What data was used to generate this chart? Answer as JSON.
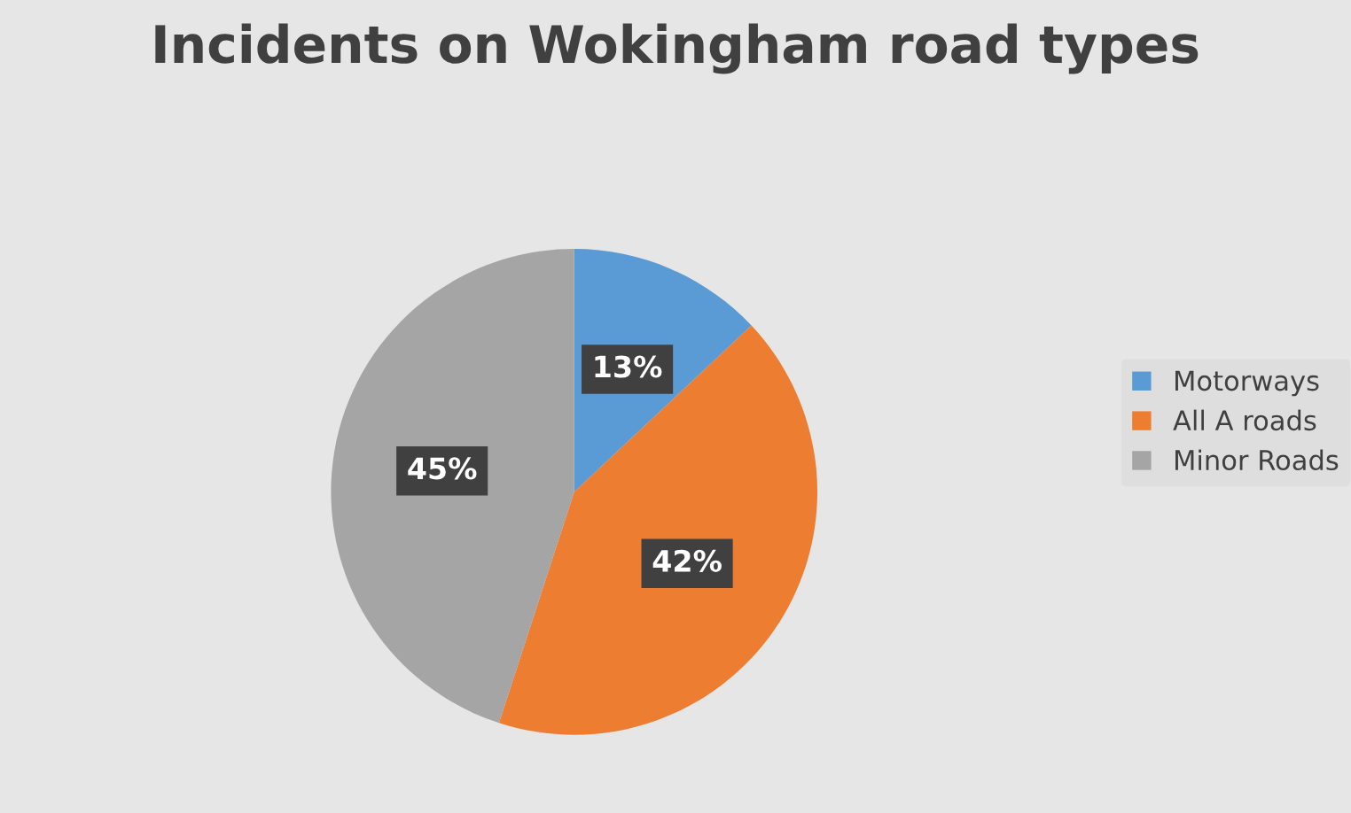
{
  "chart_data": {
    "type": "pie",
    "title": "Incidents on Wokingham road types",
    "categories": [
      "Motorways",
      "All A roads",
      "Minor Roads"
    ],
    "values": [
      13,
      42,
      45
    ],
    "colors": [
      "#5b9bd5",
      "#ed7d31",
      "#a5a5a5"
    ],
    "value_labels": [
      "13%",
      "42%",
      "45%"
    ],
    "legend": "right"
  }
}
